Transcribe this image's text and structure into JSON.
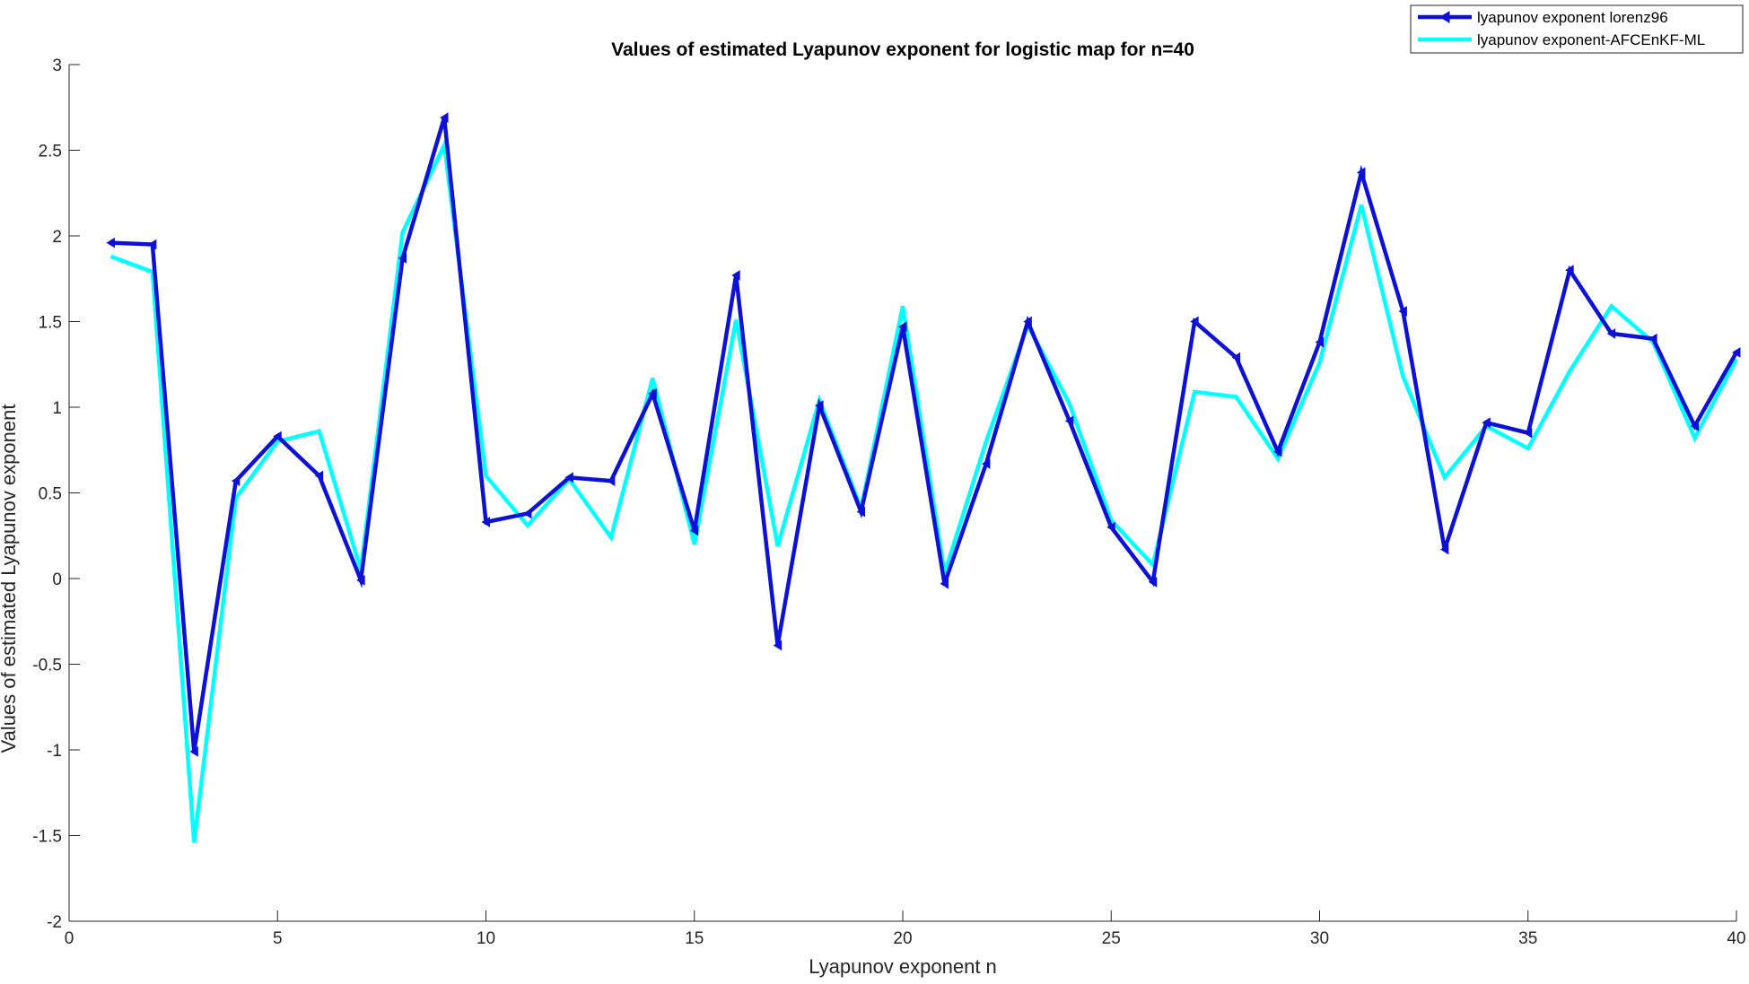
{
  "chart_data": {
    "type": "line",
    "title": "Values of estimated Lyapunov exponent for logistic map for n=40",
    "xlabel": "Lyapunov exponent n",
    "ylabel": "Values of estimated Lyapunov exponent",
    "xlim": [
      0,
      40
    ],
    "ylim": [
      -2,
      3
    ],
    "xticks": [
      0,
      5,
      10,
      15,
      20,
      25,
      30,
      35,
      40
    ],
    "yticks": [
      -2,
      -1.5,
      -1,
      -0.5,
      0,
      0.5,
      1,
      1.5,
      2,
      2.5,
      3
    ],
    "grid": false,
    "legend_position": "top-right",
    "x": [
      1,
      2,
      3,
      4,
      5,
      6,
      7,
      8,
      9,
      10,
      11,
      12,
      13,
      14,
      15,
      16,
      17,
      18,
      19,
      20,
      21,
      22,
      23,
      24,
      25,
      26,
      27,
      28,
      29,
      30,
      31,
      32,
      33,
      34,
      35,
      36,
      37,
      38,
      39,
      40
    ],
    "series": [
      {
        "name": "lyapunov exponent lorenz96",
        "color": "#0d10d6",
        "marker": "left-triangle",
        "values": [
          1.96,
          1.95,
          -1.01,
          0.57,
          0.83,
          0.6,
          -0.01,
          1.87,
          2.69,
          0.33,
          0.38,
          0.59,
          0.57,
          1.08,
          0.28,
          1.77,
          -0.39,
          1.01,
          0.39,
          1.47,
          -0.03,
          0.67,
          1.5,
          0.92,
          0.3,
          -0.02,
          1.5,
          1.29,
          0.74,
          1.38,
          2.37,
          1.56,
          0.17,
          0.91,
          0.85,
          1.8,
          1.43,
          1.4,
          0.89,
          1.32
        ]
      },
      {
        "name": "lyapunov exponent-AFCEnKF-ML",
        "color": "#00ffff",
        "marker": "none",
        "values": [
          1.88,
          1.79,
          -1.54,
          0.47,
          0.8,
          0.86,
          0.05,
          2.02,
          2.53,
          0.6,
          0.31,
          0.58,
          0.24,
          1.17,
          0.2,
          1.51,
          0.19,
          1.04,
          0.41,
          1.59,
          0.03,
          0.8,
          1.48,
          1.02,
          0.34,
          0.08,
          1.09,
          1.06,
          0.7,
          1.26,
          2.18,
          1.18,
          0.59,
          0.89,
          0.76,
          1.21,
          1.59,
          1.38,
          0.82,
          1.28
        ]
      }
    ]
  }
}
